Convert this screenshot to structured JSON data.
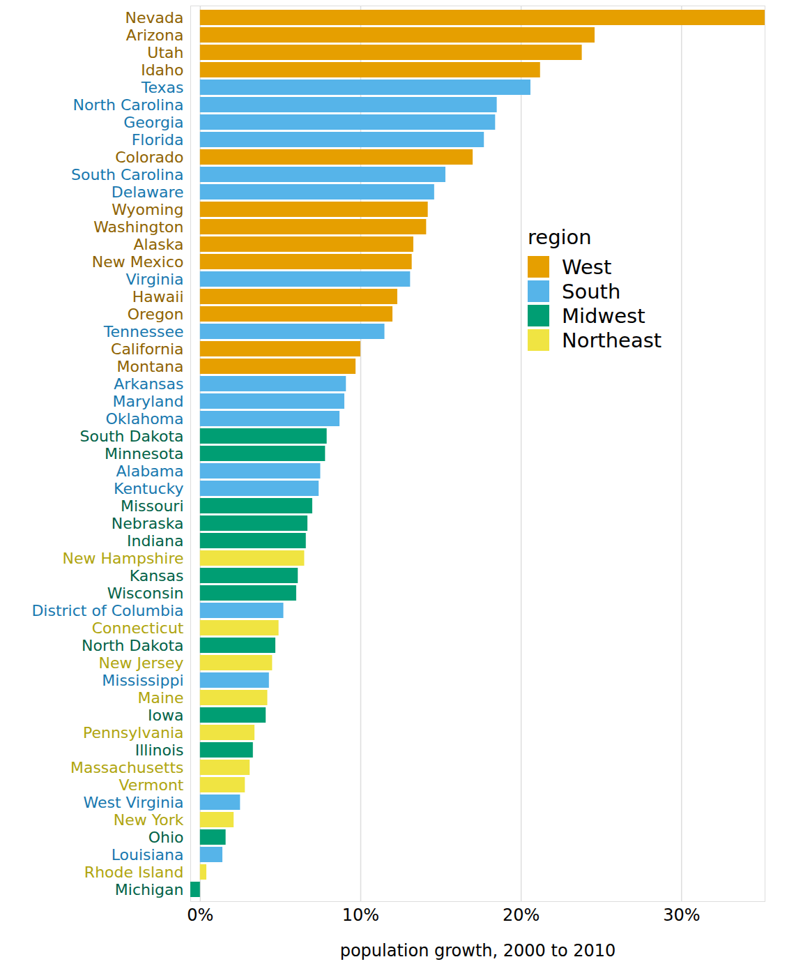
{
  "chart_data": {
    "type": "bar",
    "orientation": "horizontal",
    "xlabel": "population growth, 2000 to 2010",
    "legend_title": "region",
    "legend": "right",
    "grid": true,
    "xlim": [
      -0.6,
      35.2
    ],
    "xticks": [
      {
        "value": 0,
        "label": "0%"
      },
      {
        "value": 10,
        "label": "10%"
      },
      {
        "value": 20,
        "label": "20%"
      },
      {
        "value": 30,
        "label": "30%"
      }
    ],
    "categories": [
      "Nevada",
      "Arizona",
      "Utah",
      "Idaho",
      "Texas",
      "North Carolina",
      "Georgia",
      "Florida",
      "Colorado",
      "South Carolina",
      "Delaware",
      "Wyoming",
      "Washington",
      "Alaska",
      "New Mexico",
      "Virginia",
      "Hawaii",
      "Oregon",
      "Tennessee",
      "California",
      "Montana",
      "Arkansas",
      "Maryland",
      "Oklahoma",
      "South Dakota",
      "Minnesota",
      "Alabama",
      "Kentucky",
      "Missouri",
      "Nebraska",
      "Indiana",
      "New Hampshire",
      "Kansas",
      "Wisconsin",
      "District of Columbia",
      "Connecticut",
      "North Dakota",
      "New Jersey",
      "Mississippi",
      "Maine",
      "Iowa",
      "Pennsylvania",
      "Illinois",
      "Massachusetts",
      "Vermont",
      "West Virginia",
      "New York",
      "Ohio",
      "Louisiana",
      "Rhode Island",
      "Michigan"
    ],
    "series": [
      {
        "name": "West",
        "color": "#E69F00",
        "values": [
          35.2,
          24.6,
          23.8,
          21.2,
          null,
          null,
          null,
          null,
          17.0,
          null,
          null,
          14.2,
          14.1,
          13.3,
          13.2,
          null,
          12.3,
          12.0,
          null,
          10.0,
          9.7,
          null,
          null,
          null,
          null,
          null,
          null,
          null,
          null,
          null,
          null,
          null,
          null,
          null,
          null,
          null,
          null,
          null,
          null,
          null,
          null,
          null,
          null,
          null,
          null,
          null,
          null,
          null,
          null,
          null,
          null
        ]
      },
      {
        "name": "South",
        "color": "#56B4E9",
        "values": [
          null,
          null,
          null,
          null,
          20.6,
          18.5,
          18.4,
          17.7,
          null,
          15.3,
          14.6,
          null,
          null,
          null,
          null,
          13.1,
          null,
          null,
          11.5,
          null,
          null,
          9.1,
          9.0,
          8.7,
          null,
          null,
          7.5,
          7.4,
          null,
          null,
          null,
          null,
          null,
          null,
          5.2,
          null,
          null,
          null,
          4.3,
          null,
          null,
          null,
          null,
          null,
          null,
          2.5,
          null,
          null,
          1.4,
          null,
          null
        ]
      },
      {
        "name": "Midwest",
        "color": "#009E73",
        "values": [
          null,
          null,
          null,
          null,
          null,
          null,
          null,
          null,
          null,
          null,
          null,
          null,
          null,
          null,
          null,
          null,
          null,
          null,
          null,
          null,
          null,
          null,
          null,
          null,
          7.9,
          7.8,
          null,
          null,
          7.0,
          6.7,
          6.6,
          null,
          6.1,
          6.0,
          null,
          null,
          4.7,
          null,
          null,
          null,
          4.1,
          null,
          3.3,
          null,
          null,
          null,
          null,
          1.6,
          null,
          null,
          -0.6
        ]
      },
      {
        "name": "Northeast",
        "color": "#F0E442",
        "values": [
          null,
          null,
          null,
          null,
          null,
          null,
          null,
          null,
          null,
          null,
          null,
          null,
          null,
          null,
          null,
          null,
          null,
          null,
          null,
          null,
          null,
          null,
          null,
          null,
          null,
          null,
          null,
          null,
          null,
          null,
          null,
          6.5,
          null,
          null,
          null,
          4.9,
          null,
          4.5,
          null,
          4.2,
          null,
          3.4,
          null,
          3.1,
          2.8,
          null,
          2.1,
          null,
          null,
          0.4,
          null
        ]
      }
    ]
  }
}
